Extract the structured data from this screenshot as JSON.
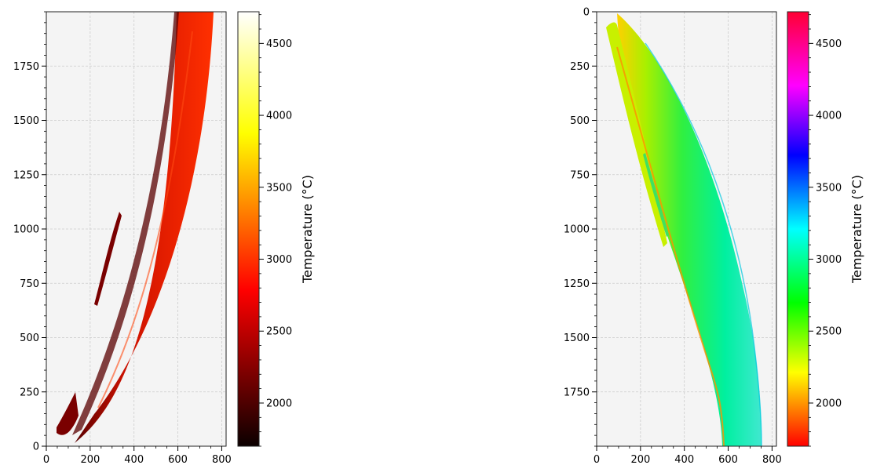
{
  "chart_data": [
    {
      "type": "heatmap",
      "colormap": "hot",
      "title": "",
      "xlabel": "",
      "ylabel": "",
      "xlim": [
        0,
        820
      ],
      "ylim": [
        0,
        2000
      ],
      "y_inverted": false,
      "grid": true,
      "x_ticks": [
        0,
        200,
        400,
        600,
        800
      ],
      "y_ticks": [
        0,
        250,
        500,
        750,
        1000,
        1250,
        1500,
        1750
      ],
      "colorbar": {
        "label": "Temperature (°C)",
        "range": [
          1700,
          4720
        ],
        "ticks": [
          2000,
          2500,
          3000,
          3500,
          4000,
          4500
        ]
      },
      "background_color": "#f4f4f4"
    },
    {
      "type": "heatmap",
      "colormap": "hsv",
      "title": "",
      "xlabel": "",
      "ylabel": "",
      "xlim": [
        0,
        820
      ],
      "ylim": [
        2000,
        0
      ],
      "y_inverted": true,
      "grid": true,
      "x_ticks": [
        0,
        200,
        400,
        600,
        800
      ],
      "y_ticks": [
        0,
        250,
        500,
        750,
        1000,
        1250,
        1500,
        1750
      ],
      "colorbar": {
        "label": "Temperature (°C)",
        "range": [
          1700,
          4720
        ],
        "ticks": [
          2000,
          2500,
          3000,
          3500,
          4000,
          4500
        ]
      },
      "background_color": "#f4f4f4"
    }
  ]
}
